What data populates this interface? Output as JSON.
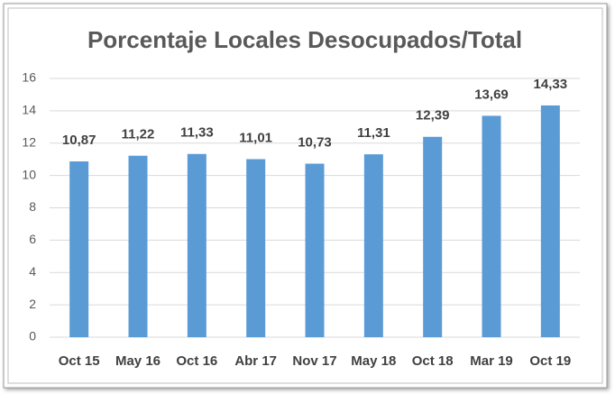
{
  "chart_data": {
    "type": "bar",
    "title": "Porcentaje Locales Desocupados/Total",
    "categories": [
      "Oct 15",
      "May 16",
      "Oct 16",
      "Abr 17",
      "Nov 17",
      "May 18",
      "Oct 18",
      "Mar 19",
      "Oct 19"
    ],
    "values": [
      10.87,
      11.22,
      11.33,
      11.01,
      10.73,
      11.31,
      12.39,
      13.69,
      14.33
    ],
    "value_labels": [
      "10,87",
      "11,22",
      "11,33",
      "11,01",
      "10,73",
      "11,31",
      "12,39",
      "13,69",
      "14,33"
    ],
    "color": "#5b9bd5",
    "ylim": [
      0,
      16
    ],
    "yticks": [
      0,
      2,
      4,
      6,
      8,
      10,
      12,
      14,
      16
    ],
    "grid": true
  }
}
